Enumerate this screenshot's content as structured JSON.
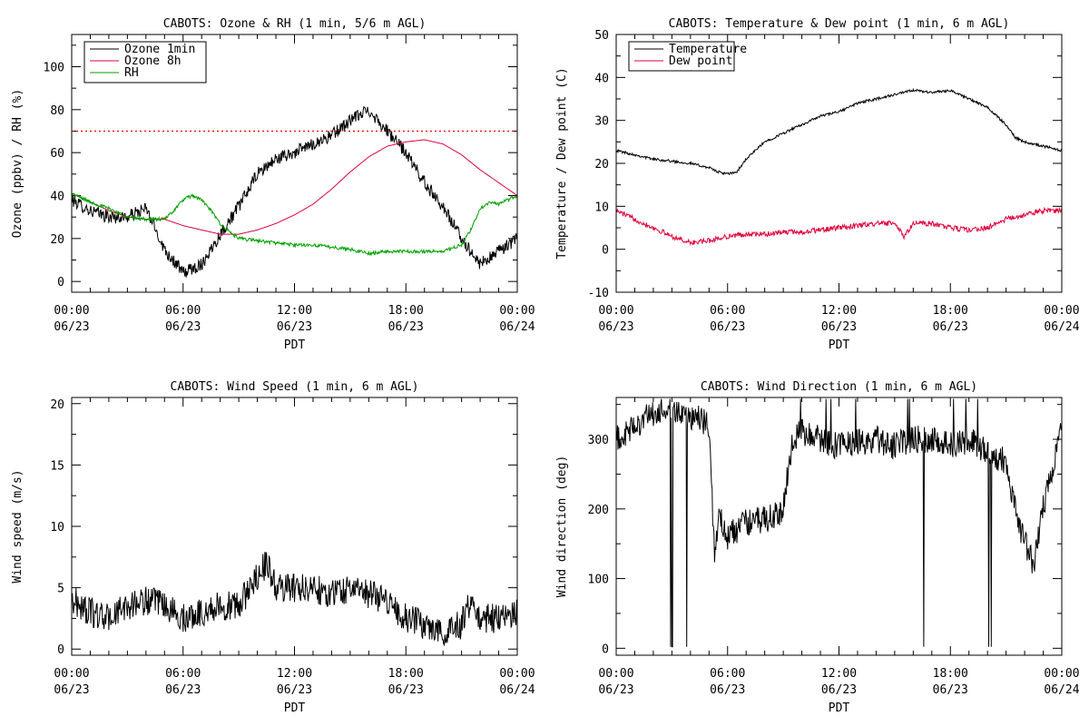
{
  "chart_data": [
    {
      "type": "line",
      "title": "CABOTS: Ozone & RH (1 min, 5/6 m AGL)",
      "xlabel": "PDT",
      "ylabel": "Ozone (ppbv) / RH (%)",
      "xlim": [
        0,
        24
      ],
      "ylim": [
        -5,
        115
      ],
      "yticks": [
        0,
        20,
        40,
        60,
        80,
        100
      ],
      "xticks": [
        {
          "t": 0,
          "time": "00:00",
          "date": "06/23"
        },
        {
          "t": 6,
          "time": "06:00",
          "date": "06/23"
        },
        {
          "t": 12,
          "time": "12:00",
          "date": "06/23"
        },
        {
          "t": 18,
          "time": "18:00",
          "date": "06/23"
        },
        {
          "t": 24,
          "time": "00:00",
          "date": "06/24"
        }
      ],
      "legend_position": "top-left",
      "reference_line": {
        "y": 70,
        "color": "#ff0000",
        "style": "dotted"
      },
      "series": [
        {
          "name": "Ozone 1min",
          "color": "#000000",
          "noise": 3,
          "x": [
            0,
            1,
            2,
            3,
            4,
            5,
            6,
            7,
            8,
            9,
            10,
            11,
            12,
            13,
            14,
            15,
            16,
            17,
            18,
            19,
            20,
            21,
            22,
            23,
            24
          ],
          "y": [
            38,
            33,
            30,
            30,
            34,
            15,
            4,
            8,
            22,
            35,
            50,
            57,
            60,
            64,
            68,
            75,
            80,
            70,
            60,
            46,
            35,
            20,
            8,
            14,
            20
          ]
        },
        {
          "name": "Ozone 8h",
          "color": "#e0003c",
          "noise": 0,
          "x": [
            0,
            1,
            2,
            3,
            4,
            5,
            6,
            7,
            8,
            9,
            10,
            11,
            12,
            13,
            14,
            15,
            16,
            17,
            18,
            19,
            20,
            21,
            22,
            23,
            24
          ],
          "y": [
            41,
            37,
            33,
            30,
            29,
            29,
            26,
            24,
            22,
            22,
            24,
            27,
            31,
            36,
            43,
            51,
            58,
            63,
            65,
            66,
            64,
            59,
            52,
            46,
            40
          ]
        },
        {
          "name": "RH",
          "color": "#00a000",
          "noise": 0.8,
          "x": [
            0,
            1,
            2,
            3,
            4,
            5,
            5.5,
            6,
            6.5,
            7,
            7.5,
            8,
            8.5,
            9,
            10,
            11,
            12,
            13,
            14,
            15,
            16,
            17,
            18,
            19,
            20,
            21,
            21.5,
            22,
            22.5,
            23,
            23.5,
            24
          ],
          "y": [
            41,
            37,
            34,
            30,
            29,
            29,
            33,
            38,
            40,
            38,
            33,
            27,
            23,
            20,
            19,
            18,
            17,
            17,
            16,
            15,
            13,
            14,
            14,
            14,
            14,
            17,
            24,
            34,
            37,
            36,
            38,
            40
          ]
        }
      ]
    },
    {
      "type": "line",
      "title": "CABOTS: Temperature & Dew point (1 min, 6 m AGL)",
      "xlabel": "PDT",
      "ylabel": "Temperature / Dew point (C)",
      "xlim": [
        0,
        24
      ],
      "ylim": [
        -10,
        50
      ],
      "yticks": [
        -10,
        0,
        10,
        20,
        30,
        40,
        50
      ],
      "xticks": [
        {
          "t": 0,
          "time": "00:00",
          "date": "06/23"
        },
        {
          "t": 6,
          "time": "06:00",
          "date": "06/23"
        },
        {
          "t": 12,
          "time": "12:00",
          "date": "06/23"
        },
        {
          "t": 18,
          "time": "18:00",
          "date": "06/23"
        },
        {
          "t": 24,
          "time": "00:00",
          "date": "06/24"
        }
      ],
      "legend_position": "top-left",
      "series": [
        {
          "name": "Temperature",
          "color": "#000000",
          "noise": 0.3,
          "x": [
            0,
            1,
            2,
            3,
            4,
            5,
            5.5,
            6,
            6.5,
            7,
            8,
            9,
            10,
            11,
            12,
            13,
            14,
            15,
            16,
            17,
            18,
            19,
            20,
            21,
            21.5,
            22,
            23,
            24
          ],
          "y": [
            23,
            22,
            21,
            20.5,
            20,
            19,
            18,
            17.5,
            18,
            21,
            25,
            27,
            29,
            31,
            32,
            34,
            35,
            36,
            37,
            36.5,
            37,
            35,
            33,
            29,
            26,
            25,
            24,
            23
          ]
        },
        {
          "name": "Dew point",
          "color": "#e0003c",
          "noise": 0.6,
          "x": [
            0,
            1,
            2,
            3,
            4,
            5,
            6,
            7,
            8,
            9,
            10,
            11,
            12,
            13,
            14,
            15,
            15.5,
            16,
            17,
            18,
            19,
            20,
            21,
            22,
            23,
            24
          ],
          "y": [
            9,
            7,
            5,
            3,
            1.5,
            2,
            3,
            3.5,
            3.5,
            4,
            4,
            4.5,
            5,
            5.5,
            6,
            6,
            3,
            6,
            6,
            5,
            4.5,
            5,
            7,
            8,
            9,
            9
          ]
        }
      ]
    },
    {
      "type": "line",
      "title": "CABOTS: Wind Speed (1 min, 6 m AGL)",
      "xlabel": "PDT",
      "ylabel": "Wind speed (m/s)",
      "xlim": [
        0,
        24
      ],
      "ylim": [
        -0.5,
        20.5
      ],
      "yticks": [
        0,
        5,
        10,
        15,
        20
      ],
      "xticks": [
        {
          "t": 0,
          "time": "00:00",
          "date": "06/23"
        },
        {
          "t": 6,
          "time": "06:00",
          "date": "06/23"
        },
        {
          "t": 12,
          "time": "12:00",
          "date": "06/23"
        },
        {
          "t": 18,
          "time": "18:00",
          "date": "06/23"
        },
        {
          "t": 24,
          "time": "00:00",
          "date": "06/24"
        }
      ],
      "series": [
        {
          "name": "",
          "color": "#000000",
          "noise": 1.2,
          "x": [
            0,
            1,
            2,
            3,
            4,
            5,
            6,
            7,
            8,
            9,
            10,
            10.5,
            11,
            12,
            13,
            14,
            15,
            16,
            17,
            18,
            19,
            20,
            21,
            21.5,
            22,
            23,
            24
          ],
          "y": [
            4,
            3,
            2.5,
            3.5,
            4,
            3.5,
            2.5,
            3,
            3.5,
            3.5,
            6,
            7,
            5,
            5,
            5,
            4.5,
            5,
            4.5,
            4,
            2.5,
            2,
            1.5,
            2,
            4,
            2.5,
            2.5,
            3
          ]
        }
      ]
    },
    {
      "type": "line",
      "title": "CABOTS: Wind Direction (1 min, 6 m AGL)",
      "xlabel": "PDT",
      "ylabel": "Wind direction (deg)",
      "xlim": [
        0,
        24
      ],
      "ylim": [
        -10,
        360
      ],
      "yticks": [
        0,
        100,
        200,
        300
      ],
      "xticks": [
        {
          "t": 0,
          "time": "00:00",
          "date": "06/23"
        },
        {
          "t": 6,
          "time": "06:00",
          "date": "06/23"
        },
        {
          "t": 12,
          "time": "12:00",
          "date": "06/23"
        },
        {
          "t": 18,
          "time": "18:00",
          "date": "06/23"
        },
        {
          "t": 24,
          "time": "00:00",
          "date": "06/24"
        }
      ],
      "series": [
        {
          "name": "",
          "color": "#000000",
          "noise": 20,
          "x": [
            0,
            0.5,
            1,
            1.5,
            2,
            2.5,
            3,
            4,
            5,
            5.3,
            5.5,
            6,
            6.5,
            7,
            8,
            8.5,
            9,
            9.5,
            10,
            11,
            12,
            13,
            14,
            15,
            16,
            17,
            18,
            19,
            20,
            21,
            21.5,
            22,
            22.5,
            23,
            23.5,
            24
          ],
          "y": [
            300,
            305,
            320,
            330,
            335,
            340,
            340,
            335,
            320,
            130,
            190,
            160,
            170,
            180,
            185,
            190,
            200,
            300,
            310,
            300,
            290,
            295,
            300,
            290,
            300,
            300,
            290,
            300,
            280,
            270,
            200,
            150,
            120,
            200,
            260,
            310
          ]
        }
      ]
    }
  ]
}
